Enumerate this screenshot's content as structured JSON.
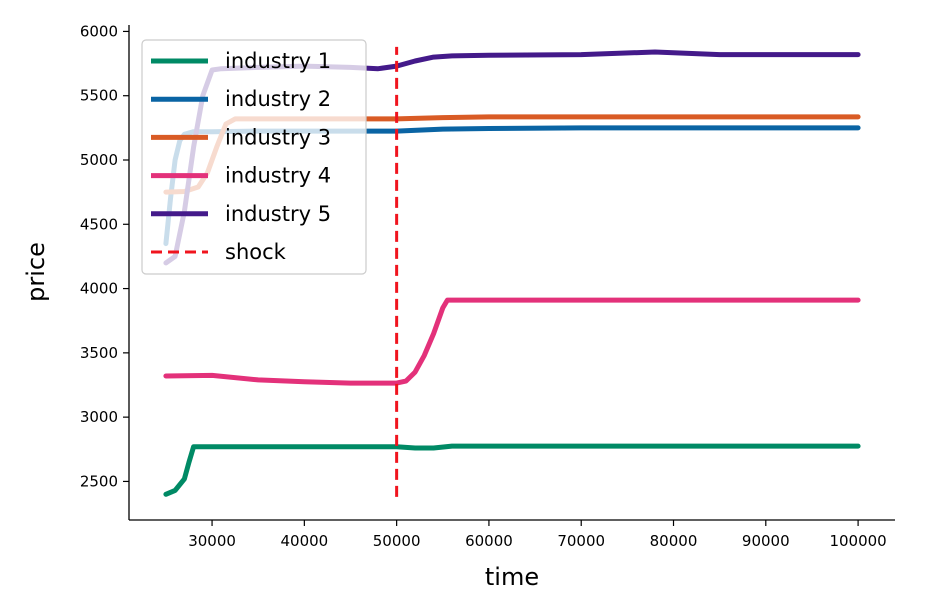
{
  "chart_data": {
    "type": "line",
    "xlabel": "time",
    "ylabel": "price",
    "xlim": [
      21000,
      104000
    ],
    "ylim": [
      2200,
      6050
    ],
    "x_ticks": [
      30000,
      40000,
      50000,
      60000,
      70000,
      80000,
      90000,
      100000
    ],
    "x_tick_labels": [
      "30000",
      "40000",
      "50000",
      "60000",
      "70000",
      "80000",
      "90000",
      "100000"
    ],
    "y_ticks": [
      2500,
      3000,
      3500,
      4000,
      4500,
      5000,
      5500,
      6000
    ],
    "y_tick_labels": [
      "2500",
      "3000",
      "3500",
      "4000",
      "4500",
      "5000",
      "5500",
      "6000"
    ],
    "legend_position": "top-left",
    "series": [
      {
        "name": "industry 1",
        "color": "#008a65",
        "x": [
          25000,
          26000,
          27000,
          27500,
          28000,
          30000,
          40000,
          50000,
          52000,
          54000,
          56000,
          70000,
          85000,
          100000
        ],
        "y": [
          2400,
          2430,
          2520,
          2650,
          2770,
          2770,
          2770,
          2770,
          2760,
          2760,
          2775,
          2775,
          2775,
          2775
        ]
      },
      {
        "name": "industry 2",
        "color": "#0a64a4",
        "x": [
          25000,
          25500,
          26000,
          26500,
          27000,
          28000,
          30000,
          35000,
          40000,
          45000,
          50000,
          55000,
          60000,
          70000,
          80000,
          90000,
          100000
        ],
        "y": [
          4350,
          4700,
          5000,
          5150,
          5200,
          5220,
          5220,
          5225,
          5225,
          5225,
          5225,
          5240,
          5245,
          5250,
          5250,
          5250,
          5250
        ]
      },
      {
        "name": "industry 3",
        "color": "#d95b25",
        "x": [
          25000,
          27000,
          28500,
          29500,
          30500,
          31500,
          32500,
          35000,
          40000,
          50000,
          55000,
          60000,
          70000,
          80000,
          90000,
          100000
        ],
        "y": [
          4750,
          4755,
          4790,
          4900,
          5100,
          5280,
          5320,
          5320,
          5320,
          5320,
          5330,
          5335,
          5335,
          5335,
          5335,
          5335
        ]
      },
      {
        "name": "industry 4",
        "color": "#e3317a",
        "x": [
          25000,
          30000,
          35000,
          40000,
          45000,
          50000,
          51000,
          52000,
          53000,
          54000,
          55000,
          55500,
          60000,
          70000,
          80000,
          90000,
          100000
        ],
        "y": [
          3320,
          3325,
          3290,
          3275,
          3265,
          3265,
          3280,
          3350,
          3480,
          3650,
          3850,
          3910,
          3910,
          3910,
          3910,
          3910,
          3910
        ]
      },
      {
        "name": "industry 5",
        "color": "#441a8a",
        "x": [
          25000,
          26000,
          27000,
          28000,
          29000,
          30000,
          31000,
          35000,
          40000,
          45000,
          48000,
          50000,
          52000,
          54000,
          56000,
          60000,
          70000,
          78000,
          85000,
          100000
        ],
        "y": [
          4200,
          4250,
          4600,
          5100,
          5500,
          5700,
          5710,
          5720,
          5730,
          5720,
          5710,
          5730,
          5770,
          5800,
          5810,
          5815,
          5820,
          5840,
          5820,
          5820
        ]
      }
    ],
    "annotations": [
      {
        "name": "shock",
        "type": "vline",
        "x": 50000,
        "y_range": [
          2380,
          5880
        ],
        "color": "#f0141e"
      }
    ]
  }
}
